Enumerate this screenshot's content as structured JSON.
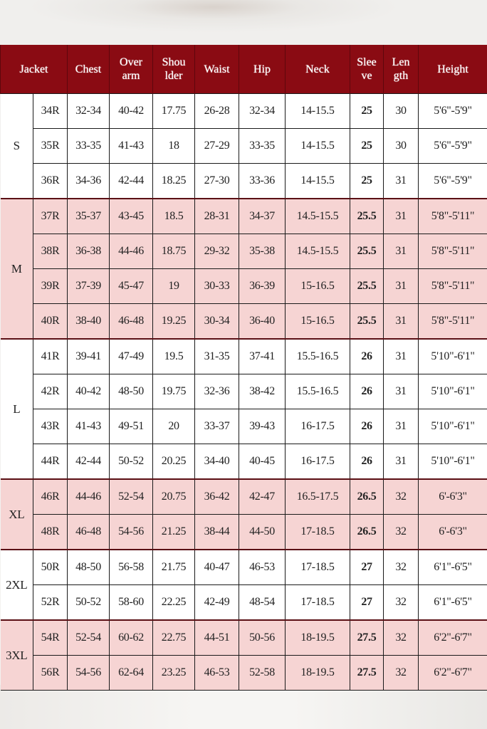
{
  "header_color": "#8a0b13",
  "shade_color": "#f6d4d3",
  "columns": [
    {
      "label": "Jacket"
    },
    {
      "label": "Chest"
    },
    {
      "label": "Over arm"
    },
    {
      "label": "Shou lder"
    },
    {
      "label": "Waist"
    },
    {
      "label": "Hip"
    },
    {
      "label": "Neck"
    },
    {
      "label": "Slee ve"
    },
    {
      "label": "Len gth"
    },
    {
      "label": "Height"
    }
  ],
  "groups": [
    {
      "size": "S",
      "shaded": false,
      "rows": [
        [
          "34R",
          "32-34",
          "40-42",
          "17.75",
          "26-28",
          "32-34",
          "14-15.5",
          "25",
          "30",
          "5'6\"-5'9\""
        ],
        [
          "35R",
          "33-35",
          "41-43",
          "18",
          "27-29",
          "33-35",
          "14-15.5",
          "25",
          "30",
          "5'6\"-5'9\""
        ],
        [
          "36R",
          "34-36",
          "42-44",
          "18.25",
          "27-30",
          "33-36",
          "14-15.5",
          "25",
          "31",
          "5'6\"-5'9\""
        ]
      ]
    },
    {
      "size": "M",
      "shaded": true,
      "rows": [
        [
          "37R",
          "35-37",
          "43-45",
          "18.5",
          "28-31",
          "34-37",
          "14.5-15.5",
          "25.5",
          "31",
          "5'8\"-5'11\""
        ],
        [
          "38R",
          "36-38",
          "44-46",
          "18.75",
          "29-32",
          "35-38",
          "14.5-15.5",
          "25.5",
          "31",
          "5'8\"-5'11\""
        ],
        [
          "39R",
          "37-39",
          "45-47",
          "19",
          "30-33",
          "36-39",
          "15-16.5",
          "25.5",
          "31",
          "5'8\"-5'11\""
        ],
        [
          "40R",
          "38-40",
          "46-48",
          "19.25",
          "30-34",
          "36-40",
          "15-16.5",
          "25.5",
          "31",
          "5'8\"-5'11\""
        ]
      ]
    },
    {
      "size": "L",
      "shaded": false,
      "rows": [
        [
          "41R",
          "39-41",
          "47-49",
          "19.5",
          "31-35",
          "37-41",
          "15.5-16.5",
          "26",
          "31",
          "5'10\"-6'1\""
        ],
        [
          "42R",
          "40-42",
          "48-50",
          "19.75",
          "32-36",
          "38-42",
          "15.5-16.5",
          "26",
          "31",
          "5'10\"-6'1\""
        ],
        [
          "43R",
          "41-43",
          "49-51",
          "20",
          "33-37",
          "39-43",
          "16-17.5",
          "26",
          "31",
          "5'10\"-6'1\""
        ],
        [
          "44R",
          "42-44",
          "50-52",
          "20.25",
          "34-40",
          "40-45",
          "16-17.5",
          "26",
          "31",
          "5'10\"-6'1\""
        ]
      ]
    },
    {
      "size": "XL",
      "shaded": true,
      "rows": [
        [
          "46R",
          "44-46",
          "52-54",
          "20.75",
          "36-42",
          "42-47",
          "16.5-17.5",
          "26.5",
          "32",
          "6'-6'3\""
        ],
        [
          "48R",
          "46-48",
          "54-56",
          "21.25",
          "38-44",
          "44-50",
          "17-18.5",
          "26.5",
          "32",
          "6'-6'3\""
        ]
      ]
    },
    {
      "size": "2XL",
      "shaded": false,
      "rows": [
        [
          "50R",
          "48-50",
          "56-58",
          "21.75",
          "40-47",
          "46-53",
          "17-18.5",
          "27",
          "32",
          "6'1\"-6'5\""
        ],
        [
          "52R",
          "50-52",
          "58-60",
          "22.25",
          "42-49",
          "48-54",
          "17-18.5",
          "27",
          "32",
          "6'1\"-6'5\""
        ]
      ]
    },
    {
      "size": "3XL",
      "shaded": true,
      "rows": [
        [
          "54R",
          "52-54",
          "60-62",
          "22.75",
          "44-51",
          "50-56",
          "18-19.5",
          "27.5",
          "32",
          "6'2\"-6'7\""
        ],
        [
          "56R",
          "54-56",
          "62-64",
          "23.25",
          "46-53",
          "52-58",
          "18-19.5",
          "27.5",
          "32",
          "6'2\"-6'7\""
        ]
      ]
    }
  ]
}
